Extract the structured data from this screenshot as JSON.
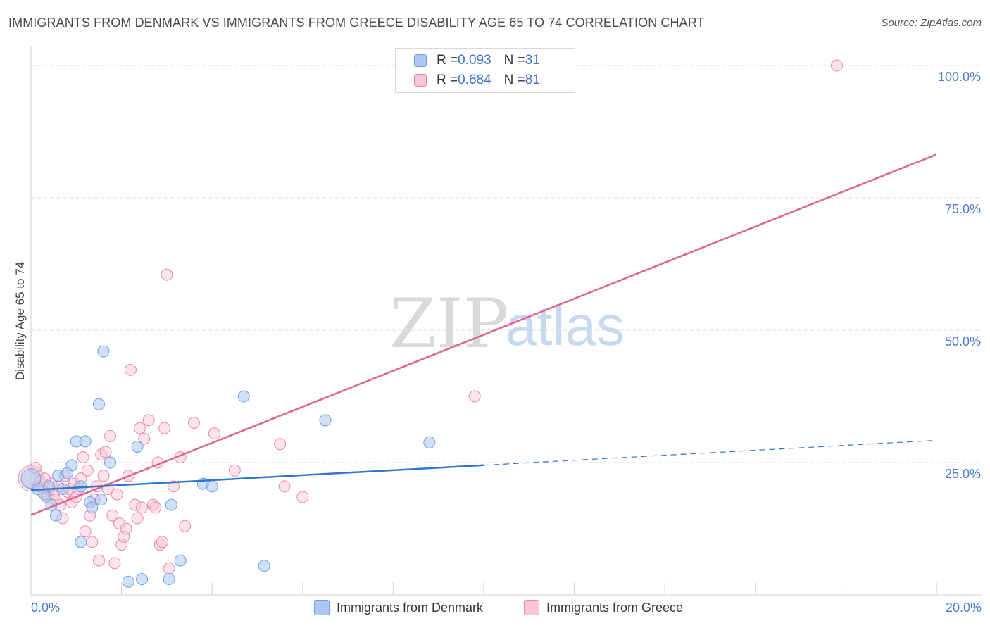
{
  "header": {
    "title": "IMMIGRANTS FROM DENMARK VS IMMIGRANTS FROM GREECE DISABILITY AGE 65 TO 74 CORRELATION CHART",
    "source": "Source: ZipAtlas.com"
  },
  "watermark": {
    "zip": "ZIP",
    "atlas": "atlas"
  },
  "legend": {
    "rows": [
      {
        "r_label": "R = ",
        "r_value": "0.093",
        "n_label": "N = ",
        "n_value": "31",
        "color": "#aac8f0",
        "border": "#6f9fe0"
      },
      {
        "r_label": "R = ",
        "r_value": "0.684",
        "n_label": "N = ",
        "n_value": "81",
        "color": "#f9c6d6",
        "border": "#e889a8"
      }
    ]
  },
  "bottom_legend": {
    "denmark": "Immigrants from Denmark",
    "greece": "Immigrants from Greece"
  },
  "colors": {
    "denmark_fill": "#aac8f0",
    "denmark_stroke": "#6f9fe0",
    "denmark_line": "#2f74d0",
    "greece_fill": "#f9c6d6",
    "greece_stroke": "#e889a8",
    "greece_line": "#e0628e",
    "grid": "#dddddd",
    "tick_text": "#4a7bd0"
  },
  "chart_data": {
    "type": "scatter",
    "title": "IMMIGRANTS FROM DENMARK VS IMMIGRANTS FROM GREECE DISABILITY AGE 65 TO 74 CORRELATION CHART",
    "xlabel": "",
    "ylabel": "Disability Age 65 to 74",
    "xlim": [
      0,
      20
    ],
    "ylim": [
      0,
      102
    ],
    "x_tick_labels": [
      {
        "value": 0,
        "label": "0.0%"
      },
      {
        "value": 20,
        "label": "20.0%"
      }
    ],
    "y_tick_labels": [
      {
        "value": 25,
        "label": "25.0%"
      },
      {
        "value": 50,
        "label": "50.0%"
      },
      {
        "value": 75,
        "label": "75.0%"
      },
      {
        "value": 100,
        "label": "100.0%"
      }
    ],
    "x_minor_ticks": [
      0,
      2,
      4,
      6,
      8,
      10,
      12,
      14,
      16,
      18,
      20
    ],
    "grid": true,
    "series": [
      {
        "name": "Immigrants from Denmark",
        "R": 0.093,
        "N": 31,
        "trend": {
          "x0": 0,
          "y0": 19.8,
          "x1": 10,
          "y1": 24.5,
          "dashed_to_x": 20,
          "dashed_to_y": 29.2
        },
        "points": [
          {
            "x": 0.0,
            "y": 22.0,
            "big": true
          },
          {
            "x": 0.15,
            "y": 20.0
          },
          {
            "x": 0.3,
            "y": 19.0
          },
          {
            "x": 0.4,
            "y": 20.5
          },
          {
            "x": 0.45,
            "y": 17.0
          },
          {
            "x": 0.55,
            "y": 15.0
          },
          {
            "x": 0.6,
            "y": 22.5
          },
          {
            "x": 0.7,
            "y": 20.0
          },
          {
            "x": 0.8,
            "y": 23.0
          },
          {
            "x": 0.9,
            "y": 24.5
          },
          {
            "x": 1.0,
            "y": 29.0
          },
          {
            "x": 1.1,
            "y": 20.5
          },
          {
            "x": 1.1,
            "y": 10.0
          },
          {
            "x": 1.2,
            "y": 29.0
          },
          {
            "x": 1.3,
            "y": 17.5
          },
          {
            "x": 1.35,
            "y": 16.5
          },
          {
            "x": 1.5,
            "y": 36.0
          },
          {
            "x": 1.55,
            "y": 18.0
          },
          {
            "x": 1.6,
            "y": 46.0
          },
          {
            "x": 1.75,
            "y": 25.0
          },
          {
            "x": 2.15,
            "y": 2.5
          },
          {
            "x": 2.35,
            "y": 28.0
          },
          {
            "x": 2.45,
            "y": 3.0
          },
          {
            "x": 3.05,
            "y": 3.0
          },
          {
            "x": 3.1,
            "y": 17.0
          },
          {
            "x": 3.3,
            "y": 6.5
          },
          {
            "x": 3.8,
            "y": 21.0
          },
          {
            "x": 4.0,
            "y": 20.5
          },
          {
            "x": 4.7,
            "y": 37.5
          },
          {
            "x": 5.15,
            "y": 5.5
          },
          {
            "x": 6.5,
            "y": 33.0
          },
          {
            "x": 8.8,
            "y": 28.8
          }
        ]
      },
      {
        "name": "Immigrants from Greece",
        "R": 0.684,
        "N": 81,
        "trend": {
          "x0": 0,
          "y0": 15.1,
          "x1": 20,
          "y1": 83.2
        },
        "points": [
          {
            "x": 0.0,
            "y": 22.0,
            "big": true
          },
          {
            "x": 0.1,
            "y": 24.0
          },
          {
            "x": 0.15,
            "y": 20.5
          },
          {
            "x": 0.2,
            "y": 21.5
          },
          {
            "x": 0.25,
            "y": 19.5
          },
          {
            "x": 0.3,
            "y": 22.0
          },
          {
            "x": 0.35,
            "y": 18.5
          },
          {
            "x": 0.4,
            "y": 20.0
          },
          {
            "x": 0.45,
            "y": 21.0
          },
          {
            "x": 0.5,
            "y": 19.0
          },
          {
            "x": 0.55,
            "y": 18.0
          },
          {
            "x": 0.6,
            "y": 20.5
          },
          {
            "x": 0.65,
            "y": 17.0
          },
          {
            "x": 0.7,
            "y": 14.5
          },
          {
            "x": 0.75,
            "y": 22.5
          },
          {
            "x": 0.8,
            "y": 19.5
          },
          {
            "x": 0.85,
            "y": 20.0
          },
          {
            "x": 0.9,
            "y": 17.5
          },
          {
            "x": 0.95,
            "y": 21.0
          },
          {
            "x": 1.0,
            "y": 18.5
          },
          {
            "x": 1.05,
            "y": 20.0
          },
          {
            "x": 1.1,
            "y": 22.0
          },
          {
            "x": 1.15,
            "y": 26.0
          },
          {
            "x": 1.2,
            "y": 12.0
          },
          {
            "x": 1.25,
            "y": 23.5
          },
          {
            "x": 1.3,
            "y": 15.0
          },
          {
            "x": 1.35,
            "y": 10.0
          },
          {
            "x": 1.4,
            "y": 18.0
          },
          {
            "x": 1.45,
            "y": 20.5
          },
          {
            "x": 1.5,
            "y": 6.5
          },
          {
            "x": 1.55,
            "y": 26.5
          },
          {
            "x": 1.6,
            "y": 22.5
          },
          {
            "x": 1.65,
            "y": 27.0
          },
          {
            "x": 1.7,
            "y": 20.0
          },
          {
            "x": 1.75,
            "y": 30.0
          },
          {
            "x": 1.8,
            "y": 15.0
          },
          {
            "x": 1.85,
            "y": 6.0
          },
          {
            "x": 1.9,
            "y": 19.0
          },
          {
            "x": 1.95,
            "y": 13.5
          },
          {
            "x": 2.0,
            "y": 9.5
          },
          {
            "x": 2.05,
            "y": 11.0
          },
          {
            "x": 2.1,
            "y": 12.5
          },
          {
            "x": 2.15,
            "y": 22.5
          },
          {
            "x": 2.2,
            "y": 42.5
          },
          {
            "x": 2.3,
            "y": 17.0
          },
          {
            "x": 2.35,
            "y": 14.5
          },
          {
            "x": 2.4,
            "y": 31.5
          },
          {
            "x": 2.45,
            "y": 16.5
          },
          {
            "x": 2.5,
            "y": 29.5
          },
          {
            "x": 2.6,
            "y": 33.0
          },
          {
            "x": 2.7,
            "y": 17.0
          },
          {
            "x": 2.75,
            "y": 16.5
          },
          {
            "x": 2.8,
            "y": 25.0
          },
          {
            "x": 2.85,
            "y": 9.5
          },
          {
            "x": 2.9,
            "y": 10.0
          },
          {
            "x": 2.95,
            "y": 31.5
          },
          {
            "x": 3.0,
            "y": 60.5
          },
          {
            "x": 3.05,
            "y": 5.0
          },
          {
            "x": 3.15,
            "y": 20.5
          },
          {
            "x": 3.3,
            "y": 26.0
          },
          {
            "x": 3.4,
            "y": 13.0
          },
          {
            "x": 3.6,
            "y": 32.5
          },
          {
            "x": 4.05,
            "y": 30.5
          },
          {
            "x": 4.5,
            "y": 23.5
          },
          {
            "x": 5.5,
            "y": 28.5
          },
          {
            "x": 5.6,
            "y": 20.5
          },
          {
            "x": 6.0,
            "y": 18.5
          },
          {
            "x": 9.8,
            "y": 37.5
          },
          {
            "x": 17.8,
            "y": 100.0
          }
        ]
      }
    ]
  }
}
